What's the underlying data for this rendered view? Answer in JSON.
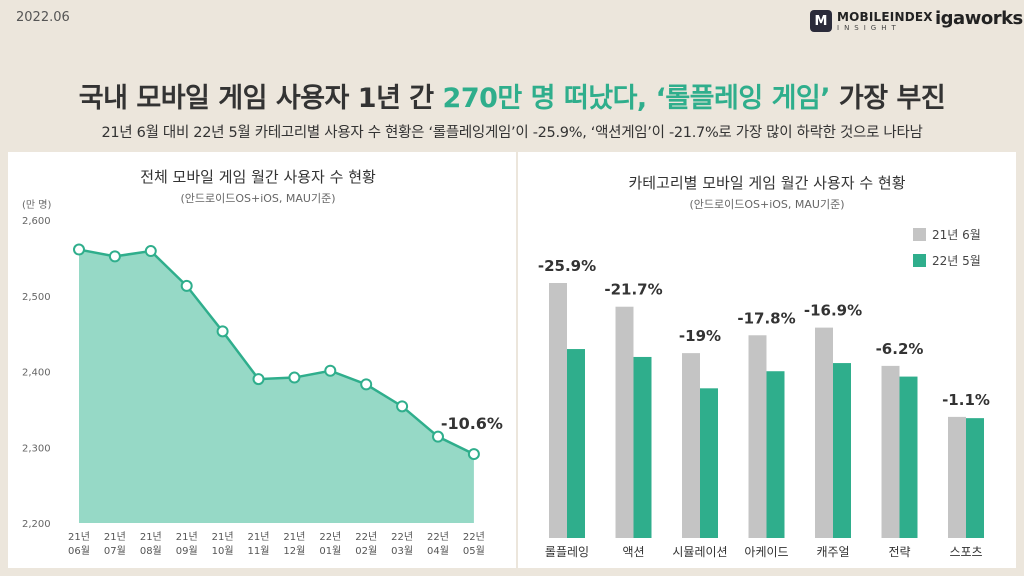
{
  "header": {
    "date": "2022.06",
    "logo_mark": "M",
    "logo_main": "MOBILEINDEX",
    "logo_sub": "INSIGHT",
    "logo_partner": "igaworks"
  },
  "title": {
    "part1": "국내 모바일 게임 사용자 1년 간 ",
    "highlight": "270만 명 떠났다, ‘롤플레잉 게임’",
    "part2": " 가장 부진"
  },
  "subtitle": "21년 6월 대비 22년 5월 카테고리별 사용자 수 현황은 ‘롤플레잉게임’이 -25.9%, ‘액션게임’이 -21.7%로 가장 많이 하락한 것으로 나타남",
  "colors": {
    "accent": "#2fae8c",
    "area": "#96d9c6",
    "line": "#2fae8c",
    "bar_prev": "#c4c4c4",
    "bar_curr": "#2fae8c"
  },
  "chart_data": [
    {
      "type": "area",
      "title": "전체 모바일 게임 월간 사용자 수 현황",
      "subtitle": "(안드로이드OS+iOS, MAU기준)",
      "ylabel": "(만 명)",
      "ylim": [
        2200,
        2600
      ],
      "yticks": [
        "2,600",
        "2,500",
        "2,400",
        "2,300",
        "2,200"
      ],
      "ytick_values": [
        2600,
        2500,
        2400,
        2300,
        2200
      ],
      "categories": [
        [
          "21년",
          "06월"
        ],
        [
          "21년",
          "07월"
        ],
        [
          "21년",
          "08월"
        ],
        [
          "21년",
          "09월"
        ],
        [
          "21년",
          "10월"
        ],
        [
          "21년",
          "11월"
        ],
        [
          "21년",
          "12월"
        ],
        [
          "22년",
          "01월"
        ],
        [
          "22년",
          "02월"
        ],
        [
          "22년",
          "03월"
        ],
        [
          "22년",
          "04월"
        ],
        [
          "22년",
          "05월"
        ]
      ],
      "values": [
        2561,
        2552,
        2559,
        2513,
        2453,
        2390,
        2392,
        2401,
        2383,
        2354,
        2314,
        2291
      ],
      "annotation": "-10.6%",
      "grid": false
    },
    {
      "type": "bar",
      "title": "카테고리별 모바일 게임 월간 사용자 수 현황",
      "subtitle": "(안드로이드OS+iOS, MAU기준)",
      "categories": [
        "롤플레잉",
        "액션",
        "시뮬레이션",
        "아케이드",
        "캐주얼",
        "전략",
        "스포츠"
      ],
      "series": [
        {
          "name": "21년 6월",
          "values": [
            100,
            90.7,
            72.5,
            79.5,
            82.5,
            67.5,
            47.5
          ]
        },
        {
          "name": "22년 5월",
          "values": [
            74.1,
            71.0,
            58.7,
            65.4,
            68.6,
            63.3,
            47.0
          ]
        }
      ],
      "labels": [
        "-25.9%",
        "-21.7%",
        "-19%",
        "-17.8%",
        "-16.9%",
        "-6.2%",
        "-1.1%"
      ],
      "ylim": [
        0,
        100
      ],
      "legend": "top-right"
    }
  ]
}
